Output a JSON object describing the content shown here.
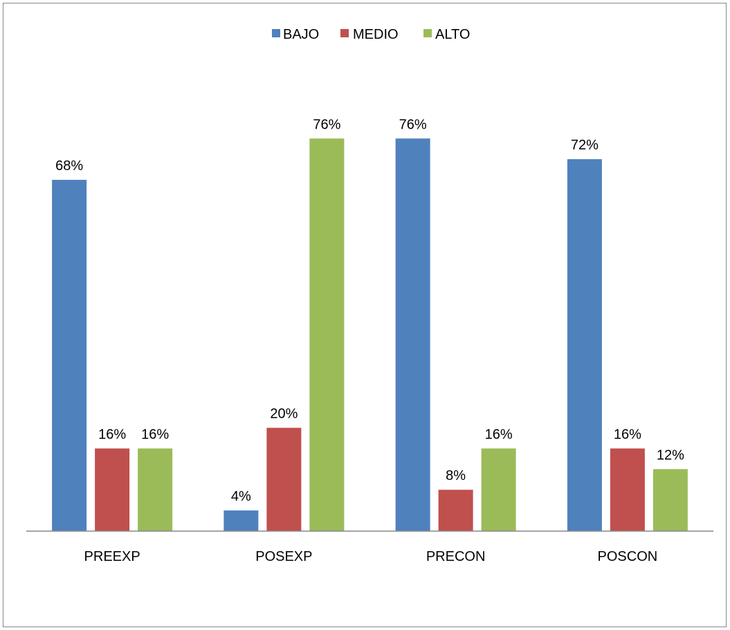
{
  "chart_data": {
    "type": "bar",
    "categories": [
      "PREEXP",
      "POSEXP",
      "PRECON",
      "POSCON"
    ],
    "series": [
      {
        "name": "BAJO",
        "values": [
          68,
          4,
          76,
          72
        ],
        "labels": [
          "68%",
          "4%",
          "76%",
          "72%"
        ],
        "color": "#4F81BD"
      },
      {
        "name": "MEDIO",
        "values": [
          16,
          20,
          8,
          16
        ],
        "labels": [
          "16%",
          "20%",
          "8%",
          "16%"
        ],
        "color": "#C0504D"
      },
      {
        "name": "ALTO",
        "values": [
          16,
          76,
          16,
          12
        ],
        "labels": [
          "16%",
          "76%",
          "16%",
          "12%"
        ],
        "color": "#9BBB59"
      }
    ],
    "title": "",
    "xlabel": "",
    "ylabel": "",
    "ylim": [
      0,
      85
    ],
    "grid": false,
    "legend_position": "top"
  }
}
